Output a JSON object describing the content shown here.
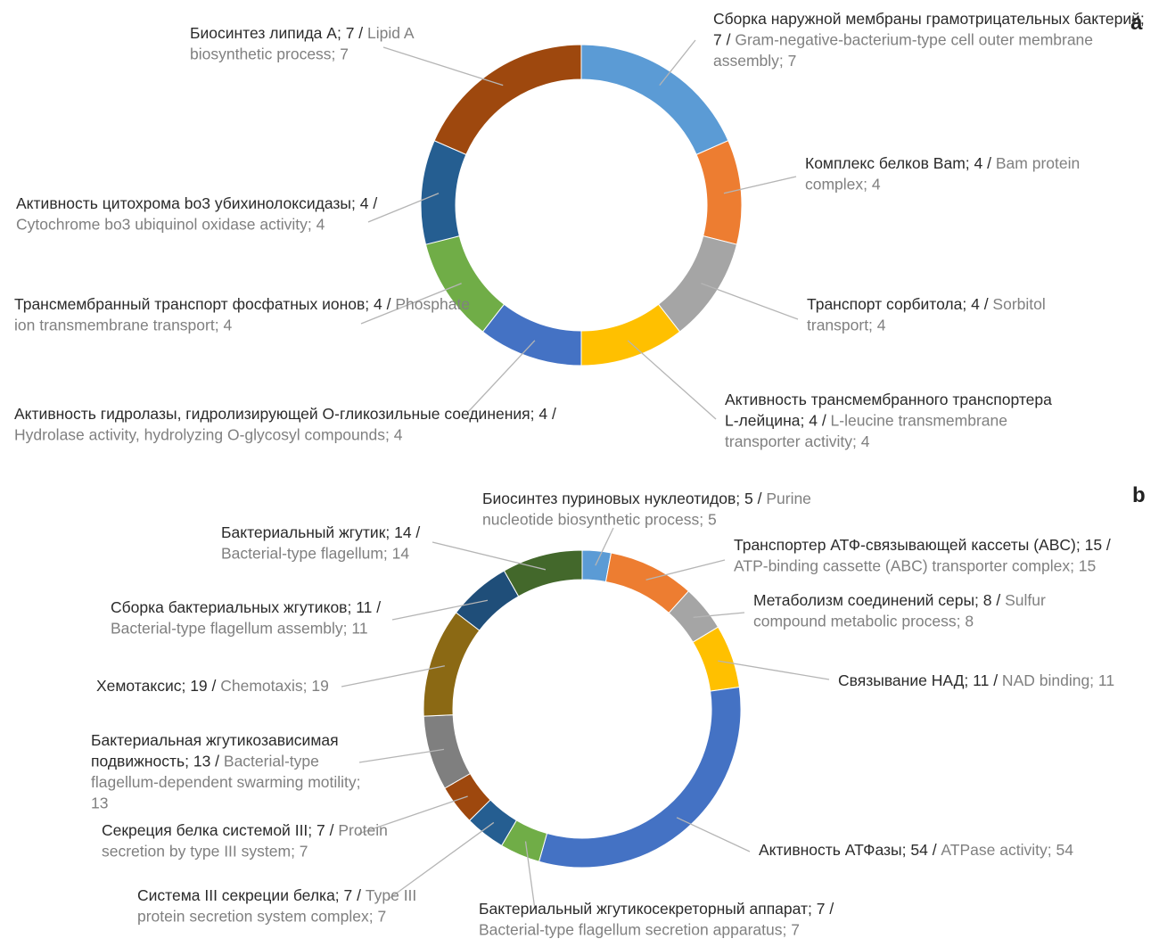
{
  "chart_data": [
    {
      "panel": "a",
      "type": "pie",
      "donut": true,
      "slices": [
        {
          "ru": "Сборка наружной мембраны грамотрицательных бактерий; 7",
          "en": "Gram-negative-bacterium-type cell outer membrane assembly; 7",
          "value": 7,
          "color": "#5B9BD5"
        },
        {
          "ru": "Комплекс белков Bam; 4",
          "en": "Bam protein complex; 4",
          "value": 4,
          "color": "#ED7D31"
        },
        {
          "ru": "Транспорт сорбитола; 4",
          "en": "Sorbitol transport; 4",
          "value": 4,
          "color": "#A5A5A5"
        },
        {
          "ru": "Активность трансмембранного транспортера L-лейцина; 4",
          "en": "L-leucine transmembrane transporter activity; 4",
          "value": 4,
          "color": "#FFC000"
        },
        {
          "ru": "Активность гидролазы, гидролизирующей O-гликозильные соединения; 4",
          "en": "Hydrolase activity, hydrolyzing O-glycosyl compounds; 4",
          "value": 4,
          "color": "#4472C4"
        },
        {
          "ru": "Трансмембранный транспорт фосфатных ионов; 4",
          "en": "Phosphate ion transmembrane transport; 4",
          "value": 4,
          "color": "#70AD47"
        },
        {
          "ru": "Активность цитохрома bo3 убихинолоксидазы; 4",
          "en": "Cytochrome bo3 ubiquinol oxidase activity; 4",
          "value": 4,
          "color": "#255E91"
        },
        {
          "ru": "Биосинтез липида А; 7",
          "en": "Lipid A biosynthetic process; 7",
          "value": 7,
          "color": "#9E480E"
        }
      ]
    },
    {
      "panel": "b",
      "type": "pie",
      "donut": true,
      "slices": [
        {
          "ru": "Биосинтез пуриновых нуклеотидов; 5",
          "en": "Purine nucleotide biosynthetic process; 5",
          "value": 5,
          "color": "#5B9BD5"
        },
        {
          "ru": "Транспортер АТФ-связывающей кассеты (ABC); 15",
          "en": "ATP-binding cassette (ABC) transporter complex; 15",
          "value": 15,
          "color": "#ED7D31"
        },
        {
          "ru": "Метаболизм соединений серы; 8",
          "en": "Sulfur compound metabolic process; 8",
          "value": 8,
          "color": "#A5A5A5"
        },
        {
          "ru": "Связывание НАД; 11",
          "en": "NAD binding; 11",
          "value": 11,
          "color": "#FFC000"
        },
        {
          "ru": "Активность АТФазы; 54",
          "en": "ATPase activity; 54",
          "value": 54,
          "color": "#4472C4"
        },
        {
          "ru": "Бактериальный жгутикосекреторный аппарат; 7",
          "en": "Bacterial-type flagellum secretion apparatus; 7",
          "value": 7,
          "color": "#70AD47"
        },
        {
          "ru": "Система III секреции белка; 7",
          "en": "Type III protein secretion system complex; 7",
          "value": 7,
          "color": "#255E91"
        },
        {
          "ru": "Секреция белка системой III; 7",
          "en": "Protein secretion by type III system; 7",
          "value": 7,
          "color": "#9E480E"
        },
        {
          "ru": "Бактериальная жгутикозависимая подвижность; 13",
          "en": "Bacterial-type flagellum-dependent swarming motility; 13",
          "value": 13,
          "color": "#7F7F7F"
        },
        {
          "ru": "Хемотаксис; 19",
          "en": "Chemotaxis; 19",
          "value": 19,
          "color": "#8B6914"
        },
        {
          "ru": "Сборка бактериальных жгутиков; 11",
          "en": "Bacterial-type flagellum assembly; 11",
          "value": 11,
          "color": "#1F4E79"
        },
        {
          "ru": "Бактериальный жгутик; 14",
          "en": "Bacterial-type flagellum; 14",
          "value": 14,
          "color": "#43682B"
        }
      ]
    }
  ]
}
